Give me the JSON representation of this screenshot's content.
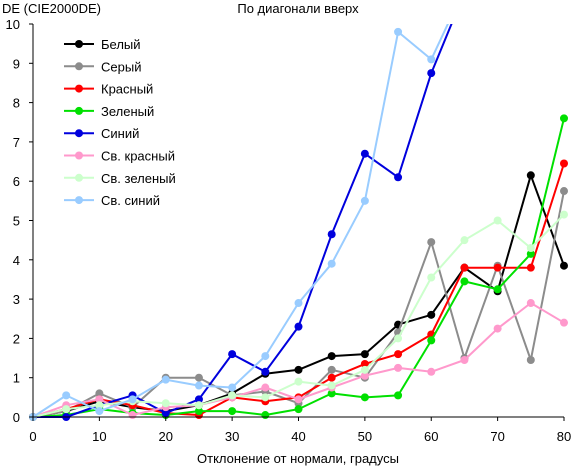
{
  "chart_data": {
    "type": "line",
    "title": "По диагонали вверх",
    "ylabel": "DE (CIE2000DE)",
    "xlabel": "Отклонение от нормали, градусы",
    "xlim": [
      0,
      80
    ],
    "ylim": [
      0,
      10
    ],
    "xticks": [
      0,
      10,
      20,
      30,
      40,
      50,
      60,
      70,
      80
    ],
    "yticks": [
      0,
      1,
      2,
      3,
      4,
      5,
      6,
      7,
      8,
      9,
      10
    ],
    "grid": false,
    "legend": "top-left",
    "x": [
      0,
      5,
      10,
      15,
      20,
      25,
      30,
      35,
      40,
      45,
      50,
      55,
      60,
      65,
      70,
      75,
      80
    ],
    "series": [
      {
        "name": "Белый",
        "color": "#000000",
        "values": [
          0,
          0.15,
          0.4,
          0.25,
          0.15,
          0.3,
          0.6,
          1.1,
          1.2,
          1.55,
          1.6,
          2.35,
          2.6,
          3.8,
          3.2,
          6.15,
          3.85
        ]
      },
      {
        "name": "Серый",
        "color": "#8c8c8c",
        "values": [
          0,
          0.15,
          0.6,
          0.25,
          1.0,
          1.0,
          0.55,
          0.65,
          0.35,
          1.2,
          1.0,
          2.15,
          4.45,
          1.5,
          3.85,
          1.45,
          5.75
        ]
      },
      {
        "name": "Красный",
        "color": "#ff0000",
        "values": [
          0,
          0.2,
          0.45,
          0.3,
          0.1,
          0.05,
          0.5,
          0.4,
          0.5,
          1.0,
          1.35,
          1.6,
          2.1,
          3.8,
          3.8,
          3.8,
          6.45
        ]
      },
      {
        "name": "Зеленый",
        "color": "#00e000",
        "values": [
          0,
          0.05,
          0.2,
          0.1,
          0.05,
          0.15,
          0.15,
          0.05,
          0.2,
          0.6,
          0.5,
          0.55,
          1.95,
          3.45,
          3.25,
          4.15,
          7.6
        ]
      },
      {
        "name": "Синий",
        "color": "#0000dd",
        "values": [
          0,
          0.0,
          0.3,
          0.55,
          0.1,
          0.45,
          1.6,
          1.15,
          2.3,
          4.65,
          6.7,
          6.1,
          8.75,
          10.8,
          null,
          null,
          null
        ]
      },
      {
        "name": "Св. красный",
        "color": "#ff99cc",
        "values": [
          0,
          0.3,
          0.45,
          0.05,
          0.25,
          0.3,
          0.5,
          0.75,
          0.45,
          0.75,
          1.05,
          1.25,
          1.15,
          1.45,
          2.25,
          2.9,
          2.4
        ]
      },
      {
        "name": "Св. зеленый",
        "color": "#ccffcc",
        "values": [
          0,
          0.2,
          0.3,
          0.4,
          0.35,
          0.3,
          0.55,
          0.5,
          0.9,
          0.8,
          1.2,
          2.0,
          3.55,
          4.5,
          5.0,
          4.3,
          5.15
        ]
      },
      {
        "name": "Св. синий",
        "color": "#99ccff",
        "values": [
          0,
          0.55,
          0.15,
          0.45,
          0.95,
          0.8,
          0.75,
          1.55,
          2.9,
          3.9,
          5.5,
          9.8,
          9.1,
          10.9,
          null,
          null,
          null
        ]
      }
    ]
  }
}
